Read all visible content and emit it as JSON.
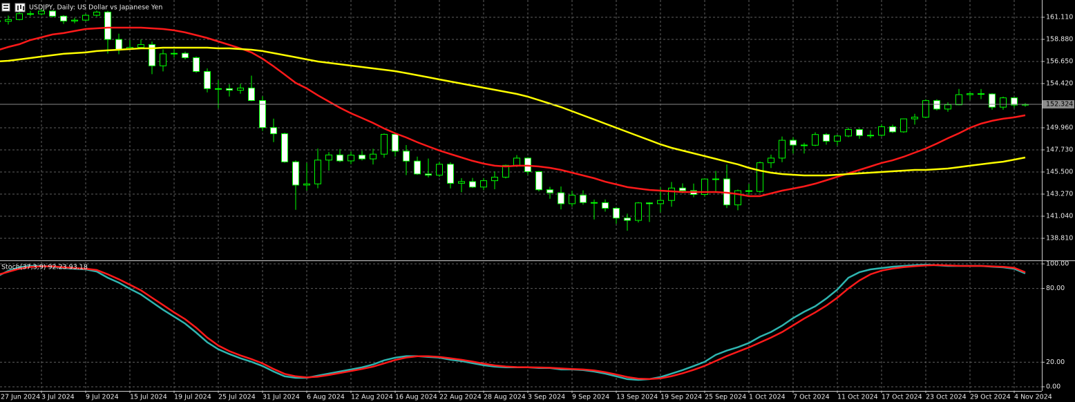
{
  "chart_data": {
    "type": "candlestick",
    "title": "USDJPY, Daily:  US Dollar vs Japanese Yen",
    "categories": [
      "27 Jun 2024",
      null,
      null,
      null,
      "3 Jul 2024",
      null,
      null,
      null,
      "9 Jul 2024",
      null,
      null,
      null,
      "15 Jul 2024",
      null,
      null,
      null,
      "19 Jul 2024",
      null,
      null,
      null,
      "25 Jul 2024",
      null,
      null,
      null,
      "31 Jul 2024",
      null,
      null,
      null,
      "6 Aug 2024",
      null,
      null,
      null,
      "12 Aug 2024",
      null,
      null,
      null,
      "16 Aug 2024",
      null,
      null,
      null,
      "22 Aug 2024",
      null,
      null,
      null,
      "28 Aug 2024",
      null,
      null,
      null,
      "3 Sep 2024",
      null,
      null,
      null,
      "9 Sep 2024",
      null,
      null,
      null,
      "13 Sep 2024",
      null,
      null,
      null,
      "19 Sep 2024",
      null,
      null,
      null,
      "25 Sep 2024",
      null,
      null,
      null,
      "1 Oct 2024",
      null,
      null,
      null,
      "7 Oct 2024",
      null,
      null,
      null,
      "11 Oct 2024",
      null,
      null,
      null,
      "17 Oct 2024",
      null,
      null,
      null,
      "23 Oct 2024",
      null,
      null,
      null,
      "29 Oct 2024",
      null,
      null,
      null,
      "4 Nov 2024",
      null
    ],
    "open": [
      160.75,
      160.7,
      160.88,
      161.47,
      161.45,
      161.73,
      161.22,
      160.73,
      160.82,
      161.31,
      161.63,
      158.87,
      157.87,
      158.07,
      158.35,
      156.21,
      157.42,
      157.47,
      157.03,
      155.64,
      153.91,
      153.91,
      153.75,
      153.97,
      152.71,
      149.98,
      149.36,
      146.52,
      144.18,
      144.3,
      146.7,
      147.22,
      146.62,
      147.2,
      146.82,
      147.3,
      149.3,
      147.6,
      146.6,
      145.3,
      145.18,
      146.28,
      144.36,
      144.53,
      143.98,
      144.62,
      144.98,
      146.17,
      146.9,
      145.53,
      143.71,
      143.4,
      142.3,
      143.16,
      142.42,
      142.4,
      141.84,
      140.85,
      140.62,
      142.38,
      142.3,
      142.63,
      143.88,
      143.62,
      143.23,
      144.79,
      144.8,
      142.18,
      143.61,
      143.54,
      146.43,
      146.9,
      148.7,
      148.22,
      148.2,
      149.28,
      148.61,
      149.13,
      149.78,
      149.18,
      149.21,
      150.06,
      149.55,
      150.86,
      151.03,
      152.7,
      151.85,
      152.28,
      153.3,
      153.4,
      153.37,
      152.04,
      152.98,
      152.25
    ],
    "high": [
      160.87,
      161.28,
      161.73,
      161.75,
      161.95,
      161.83,
      161.32,
      161.06,
      161.45,
      161.78,
      161.76,
      159.45,
      158.81,
      158.87,
      158.65,
      157.87,
      157.9,
      157.64,
      157.15,
      155.95,
      154.76,
      154.35,
      154.4,
      155.22,
      153.15,
      150.88,
      149.46,
      146.67,
      146.42,
      147.86,
      147.5,
      147.82,
      147.56,
      147.63,
      147.84,
      149.38,
      149.4,
      148.22,
      147.05,
      146.86,
      146.54,
      146.48,
      144.88,
      144.9,
      144.89,
      145.56,
      146.24,
      147.21,
      147.0,
      145.6,
      144.0,
      144.04,
      143.6,
      143.64,
      142.72,
      142.73,
      141.97,
      141.3,
      142.47,
      142.45,
      143.94,
      144.49,
      144.35,
      144.33,
      144.85,
      145.6,
      146.26,
      143.73,
      144.3,
      146.56,
      147.25,
      149.08,
      149.0,
      148.44,
      149.51,
      149.42,
      149.25,
      149.98,
      149.87,
      149.7,
      150.32,
      150.28,
      150.89,
      151.37,
      152.84,
      152.83,
      152.52,
      153.88,
      153.56,
      153.87,
      153.44,
      153.1,
      153.0,
      152.45
    ],
    "low": [
      160.28,
      160.38,
      160.8,
      161.22,
      161.3,
      161.08,
      160.44,
      160.5,
      160.72,
      161.18,
      157.44,
      157.38,
      157.83,
      157.98,
      155.37,
      155.65,
      157.03,
      156.86,
      155.5,
      153.53,
      151.95,
      153.11,
      153.4,
      152.65,
      149.63,
      148.51,
      146.43,
      141.68,
      143.62,
      143.85,
      145.64,
      146.49,
      146.28,
      146.66,
      146.26,
      146.94,
      147.06,
      145.19,
      145.21,
      144.95,
      144.99,
      143.84,
      143.45,
      143.9,
      143.68,
      143.76,
      144.85,
      146.0,
      145.2,
      143.54,
      142.8,
      141.73,
      142.0,
      142.2,
      140.71,
      141.5,
      140.28,
      139.58,
      140.4,
      140.46,
      141.43,
      142.0,
      143.35,
      142.96,
      143.02,
      143.5,
      141.86,
      141.64,
      142.97,
      143.41,
      145.9,
      146.48,
      147.36,
      147.36,
      148.11,
      148.25,
      148.16,
      149.01,
      148.85,
      148.91,
      149.08,
      149.44,
      149.45,
      150.28,
      150.92,
      151.71,
      151.58,
      152.24,
      152.77,
      152.85,
      151.78,
      151.78,
      151.97,
      152.08
    ],
    "close": [
      160.7,
      160.88,
      161.47,
      161.45,
      161.73,
      161.22,
      160.73,
      160.82,
      161.31,
      161.63,
      158.87,
      157.87,
      158.07,
      158.35,
      156.21,
      157.42,
      157.47,
      157.03,
      155.64,
      153.91,
      153.91,
      153.75,
      153.97,
      152.71,
      149.98,
      149.36,
      146.52,
      144.18,
      144.3,
      146.7,
      147.22,
      146.62,
      147.2,
      146.82,
      147.3,
      149.3,
      147.6,
      146.6,
      145.3,
      145.18,
      146.28,
      144.36,
      144.53,
      143.98,
      144.62,
      144.98,
      146.17,
      146.9,
      145.53,
      143.71,
      143.4,
      142.3,
      143.16,
      142.42,
      142.4,
      141.84,
      140.85,
      140.62,
      142.38,
      142.3,
      142.63,
      143.88,
      143.62,
      143.23,
      144.79,
      144.8,
      142.18,
      143.61,
      143.54,
      146.43,
      146.9,
      148.7,
      148.22,
      148.2,
      149.28,
      148.61,
      149.13,
      149.78,
      149.18,
      149.21,
      150.06,
      149.55,
      150.86,
      151.03,
      152.7,
      151.85,
      152.28,
      153.3,
      153.4,
      153.37,
      152.04,
      152.98,
      152.25,
      152.324
    ],
    "up_color": "#000000",
    "down_color": "#ffffff",
    "wick_color": "#00ff00",
    "series": [
      {
        "color": "#ff1a1a",
        "values": [
          157.77,
          158.11,
          158.39,
          158.81,
          159.09,
          159.37,
          159.51,
          159.72,
          159.92,
          159.99,
          160.06,
          160.06,
          160.06,
          160.06,
          159.99,
          159.92,
          159.79,
          159.58,
          159.3,
          159.02,
          158.67,
          158.32,
          157.97,
          157.56,
          156.93,
          156.16,
          155.33,
          154.49,
          153.93,
          153.24,
          152.61,
          151.98,
          151.42,
          150.94,
          150.45,
          149.89,
          149.4,
          148.98,
          148.5,
          148.08,
          147.66,
          147.31,
          146.96,
          146.62,
          146.34,
          146.13,
          146.06,
          146.13,
          146.13,
          146.06,
          145.92,
          145.71,
          145.43,
          145.15,
          144.87,
          144.52,
          144.25,
          143.97,
          143.83,
          143.69,
          143.62,
          143.55,
          143.48,
          143.48,
          143.48,
          143.48,
          143.41,
          143.27,
          143.06,
          143.06,
          143.34,
          143.62,
          143.83,
          144.04,
          144.32,
          144.66,
          145.01,
          145.36,
          145.71,
          146.06,
          146.41,
          146.68,
          147.03,
          147.45,
          147.87,
          148.36,
          148.91,
          149.4,
          149.96,
          150.38,
          150.66,
          150.87,
          151.01,
          151.22
        ]
      },
      {
        "color": "#ffff00",
        "values": [
          156.65,
          156.72,
          156.86,
          157.0,
          157.14,
          157.28,
          157.42,
          157.49,
          157.56,
          157.7,
          157.77,
          157.83,
          157.9,
          157.97,
          157.97,
          158.04,
          158.04,
          158.04,
          158.04,
          158.04,
          157.97,
          157.97,
          157.9,
          157.83,
          157.7,
          157.49,
          157.28,
          157.07,
          156.86,
          156.65,
          156.51,
          156.37,
          156.23,
          156.09,
          155.95,
          155.81,
          155.67,
          155.47,
          155.26,
          155.05,
          154.84,
          154.63,
          154.42,
          154.21,
          154.0,
          153.79,
          153.58,
          153.37,
          153.1,
          152.75,
          152.4,
          152.05,
          151.63,
          151.21,
          150.8,
          150.38,
          149.96,
          149.54,
          149.12,
          148.71,
          148.29,
          147.94,
          147.66,
          147.38,
          147.1,
          146.82,
          146.54,
          146.27,
          145.92,
          145.64,
          145.43,
          145.29,
          145.22,
          145.15,
          145.15,
          145.15,
          145.22,
          145.29,
          145.36,
          145.43,
          145.5,
          145.57,
          145.64,
          145.71,
          145.71,
          145.78,
          145.85,
          145.99,
          146.13,
          146.27,
          146.41,
          146.54,
          146.75,
          146.96
        ]
      }
    ],
    "ylim": [
      136.58,
      162.85
    ],
    "yticks": [
      {
        "value": 161.11,
        "label": "161.110"
      },
      {
        "value": 158.88,
        "label": "158.880"
      },
      {
        "value": 156.65,
        "label": "156.650"
      },
      {
        "value": 154.42,
        "label": "154.420"
      },
      {
        "value": 149.96,
        "label": "149.960"
      },
      {
        "value": 147.73,
        "label": "147.730"
      },
      {
        "value": 145.5,
        "label": "145.500"
      },
      {
        "value": 143.27,
        "label": "143.270"
      },
      {
        "value": 141.04,
        "label": "141.040"
      },
      {
        "value": 138.81,
        "label": "138.810"
      }
    ],
    "grid": true,
    "last_price": 152.324,
    "indicator": {
      "label": "Stoch(37,3,9) 92.23 93.18",
      "ylim": [
        -3.4,
        101.7
      ],
      "yticks": [
        {
          "value": 100,
          "label": "100.00"
        },
        {
          "value": 80,
          "label": "80.00"
        },
        {
          "value": 20,
          "label": "20.00"
        },
        {
          "value": 0,
          "label": "0.00"
        }
      ],
      "series": [
        {
          "color": "#2fb5b0",
          "values": [
            89.8,
            94.4,
            97.2,
            98.3,
            98.3,
            97.7,
            96.6,
            96.0,
            95.5,
            93.8,
            88.7,
            84.7,
            79.7,
            75.1,
            68.9,
            62.7,
            57.1,
            51.4,
            44.1,
            36.2,
            30.5,
            26.6,
            23.2,
            20.3,
            16.9,
            12.4,
            8.5,
            7.3,
            7.3,
            9.0,
            10.7,
            12.4,
            14.1,
            15.8,
            18.1,
            21.5,
            23.7,
            24.9,
            24.9,
            24.3,
            23.7,
            22.0,
            20.9,
            19.2,
            17.5,
            16.4,
            15.8,
            15.8,
            15.8,
            15.3,
            15.3,
            14.1,
            14.1,
            13.6,
            12.4,
            10.7,
            8.5,
            6.2,
            5.6,
            6.2,
            7.9,
            10.7,
            13.6,
            16.9,
            20.3,
            26.0,
            29.4,
            32.2,
            35.6,
            40.7,
            44.6,
            49.7,
            55.9,
            61.0,
            65.5,
            71.8,
            79.1,
            88.7,
            93.2,
            95.5,
            96.6,
            97.7,
            98.3,
            98.9,
            99.4,
            98.9,
            98.3,
            98.3,
            98.3,
            98.3,
            97.7,
            97.2,
            96.0,
            92.23
          ]
        },
        {
          "color": "#ff1a1a",
          "values": [
            91.0,
            93.5,
            96.0,
            97.5,
            98.0,
            98.0,
            97.2,
            96.6,
            96.0,
            95.0,
            91.5,
            87.5,
            83.0,
            78.5,
            72.5,
            66.5,
            60.5,
            55.0,
            48.0,
            40.0,
            33.5,
            29.0,
            25.5,
            22.5,
            19.0,
            14.5,
            10.5,
            8.5,
            7.6,
            8.2,
            9.6,
            11.2,
            12.8,
            14.5,
            16.4,
            19.0,
            21.8,
            23.8,
            24.8,
            24.8,
            24.3,
            23.2,
            22.0,
            20.5,
            18.8,
            17.4,
            16.5,
            16.0,
            15.9,
            15.7,
            15.5,
            14.9,
            14.5,
            14.1,
            13.3,
            11.9,
            10.0,
            7.9,
            6.6,
            6.3,
            6.9,
            8.6,
            11.0,
            13.8,
            17.0,
            21.0,
            25.0,
            28.5,
            32.0,
            36.0,
            40.0,
            44.5,
            50.0,
            55.5,
            60.5,
            66.0,
            72.5,
            80.0,
            86.5,
            91.5,
            94.5,
            96.2,
            97.3,
            98.1,
            98.8,
            99.0,
            98.7,
            98.4,
            98.3,
            98.3,
            98.0,
            97.6,
            96.8,
            93.18
          ]
        }
      ]
    }
  }
}
